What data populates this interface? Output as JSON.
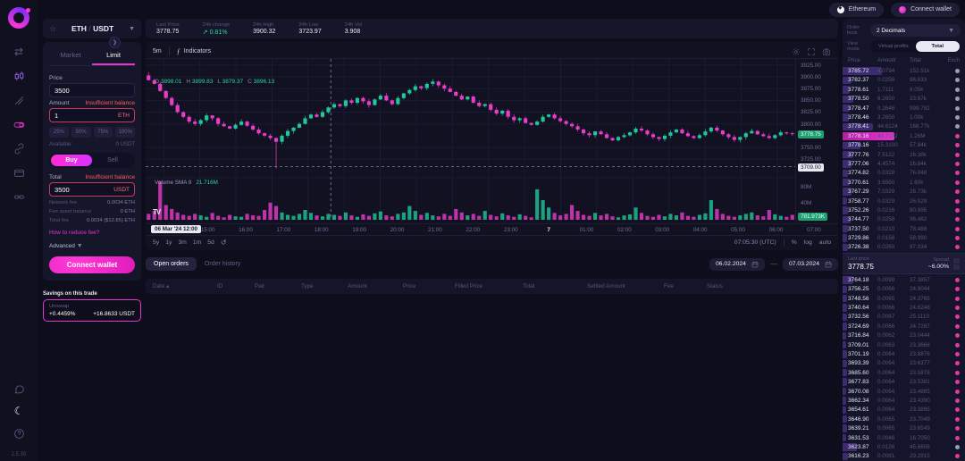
{
  "topbar": {
    "network": "Ethereum",
    "connect": "Connect wallet"
  },
  "sidebar": {
    "version": "2.5.30",
    "items": [
      "swap-icon",
      "candlestick-chart-icon",
      "draw-icon",
      "liquidity-pill-icon",
      "link-icon",
      "wallet-card-icon",
      "chain-icon"
    ],
    "bottom_items": [
      "chat-icon",
      "moon-icon",
      "help-icon"
    ]
  },
  "trade": {
    "pair_base": "ETH",
    "pair_sep": "/",
    "pair_quote": "USDT",
    "tab_market": "Market",
    "tab_limit": "Limit",
    "price_label": "Price",
    "price_value": "3500",
    "amount_label": "Amount",
    "amount_value": "1",
    "amount_unit": "ETH",
    "insufficient": "Insufficient balance",
    "percents": [
      "25%",
      "50%",
      "75%",
      "100%"
    ],
    "available_label": "Available:",
    "available_value": "0 USDT",
    "buy_label": "Buy",
    "sell_label": "Sell",
    "total_label": "Total",
    "total_value": "3500",
    "total_unit": "USDT",
    "fees": [
      {
        "label": "Network fee",
        "value": "0.0034 ETH"
      },
      {
        "label": "Fee asset balance",
        "value": "0 ETH"
      },
      {
        "label": "Total fee",
        "value": "0.0034 ($12.85) ETH"
      }
    ],
    "reduce_fee_link": "How to reduce fee?",
    "advanced_label": "Advanced",
    "connect_wallet": "Connect wallet",
    "savings_title": "Savings on this trade",
    "savings_venue": "Uniswap",
    "savings_percent": "+0.4459%",
    "savings_amount": "+16.8633 USDT"
  },
  "stats": {
    "items": [
      {
        "label": "Last Price",
        "value": "3778.75",
        "positive": false
      },
      {
        "label": "24h change",
        "value": "↗ 0.81%",
        "positive": true
      },
      {
        "label": "24h High",
        "value": "3900.32",
        "positive": false
      },
      {
        "label": "24h Low",
        "value": "3723.97",
        "positive": false
      },
      {
        "label": "24h Vol",
        "value": "3.908",
        "positive": false
      }
    ]
  },
  "chart": {
    "timeframe": "5m",
    "indicators_label": "Indicators",
    "fx_glyph": "ƒ",
    "ohlc": {
      "o_key": "O",
      "o": "3898.01",
      "h_key": "H",
      "h": "3899.83",
      "l_key": "L",
      "l": "3879.37",
      "c_key": "C",
      "c": "3896.13"
    },
    "volume_label": "Volume SMA 9",
    "volume_value": "21.716M",
    "tv_logo": "TV",
    "ranges": [
      "5y",
      "1y",
      "3m",
      "1m",
      "5d"
    ],
    "reset_glyph": "↺",
    "clock": "07:05:30 (UTC)",
    "percent_btn": "%",
    "log_btn": "log",
    "auto_btn": "auto",
    "crosshair_date": "06 Mar '24 12:00",
    "last_price_badge": "3778.75",
    "crosshair_price_badge": "3709.00",
    "volume_badge": "781.973K",
    "price_axis": [
      "3925.00",
      "3900.00",
      "3875.00",
      "3850.00",
      "3825.00",
      "3800.00",
      "3750.00",
      "3725.00"
    ],
    "volume_axis": [
      "80M",
      "40M"
    ],
    "x_axis": [
      "14:00",
      "15:00",
      "16:00",
      "17:00",
      "18:00",
      "19:00",
      "20:00",
      "21:00",
      "22:00",
      "23:00",
      "7",
      "01:00",
      "02:00",
      "03:00",
      "04:00",
      "05:00",
      "06:00",
      "07:00"
    ],
    "x_axis_day_index": 10
  },
  "chart_data": {
    "type": "candlestick",
    "pair": "ETH/USDT",
    "interval": "5m",
    "ylim": [
      3695,
      3938
    ],
    "vol_max": 80,
    "last_price": 3778.75,
    "crosshair": {
      "price": 3709,
      "x_frac": 0.285
    },
    "closes": [
      3893,
      3885,
      3870,
      3855,
      3840,
      3825,
      3815,
      3805,
      3800,
      3808,
      3818,
      3812,
      3800,
      3795,
      3790,
      3798,
      3805,
      3796,
      3788,
      3780,
      3775,
      3770,
      3762,
      3775,
      3785,
      3792,
      3800,
      3812,
      3820,
      3815,
      3825,
      3835,
      3842,
      3838,
      3850,
      3845,
      3855,
      3848,
      3840,
      3852,
      3860,
      3850,
      3842,
      3855,
      3865,
      3872,
      3880,
      3876,
      3885,
      3890,
      3882,
      3875,
      3868,
      3860,
      3852,
      3858,
      3845,
      3838,
      3842,
      3830,
      3822,
      3828,
      3815,
      3808,
      3812,
      3802,
      3798,
      3805,
      3815,
      3820,
      3812,
      3806,
      3800,
      3795,
      3788,
      3780,
      3776,
      3784,
      3778,
      3770,
      3765,
      3772,
      3776,
      3782,
      3790,
      3786,
      3778,
      3772,
      3768,
      3775,
      3782,
      3788,
      3780,
      3774,
      3770,
      3776,
      3784,
      3792,
      3786,
      3778,
      3772,
      3766,
      3772,
      3780,
      3785,
      3778,
      3774,
      3770,
      3776,
      3782,
      3780,
      3778.75
    ],
    "volumes": [
      12,
      18,
      78,
      30,
      22,
      15,
      10,
      8,
      12,
      9,
      6,
      14,
      8,
      5,
      10,
      7,
      6,
      12,
      9,
      8,
      20,
      35,
      28,
      15,
      10,
      8,
      12,
      20,
      14,
      9,
      7,
      12,
      10,
      8,
      15,
      9,
      6,
      11,
      8,
      13,
      17,
      9,
      7,
      12,
      15,
      28,
      18,
      10,
      14,
      9,
      7,
      12,
      8,
      22,
      15,
      9,
      12,
      8,
      18,
      10,
      7,
      13,
      9,
      6,
      11,
      8,
      5,
      62,
      40,
      25,
      14,
      9,
      12,
      30,
      18,
      10,
      8,
      14,
      9,
      12,
      7,
      5,
      9,
      11,
      25,
      14,
      8,
      6,
      10,
      7,
      12,
      9,
      15,
      8,
      6,
      10,
      13,
      40,
      22,
      12,
      8,
      6,
      9,
      12,
      15,
      9,
      7,
      20,
      11,
      8,
      6,
      10
    ]
  },
  "orders": {
    "tabs": [
      "Open orders",
      "Order history"
    ],
    "date_from": "06.02.2024",
    "date_to": "07.03.2024",
    "columns": [
      "Date",
      "ID",
      "Pair",
      "Type",
      "Amount",
      "Price",
      "Filled Price",
      "Total",
      "Settled Amount",
      "Fee",
      "Status"
    ],
    "sort_caret": "▴"
  },
  "orderbook": {
    "label": "Order book",
    "decimals_value": "2 Decimals",
    "view_mode_label": "View mode",
    "view_modes": [
      "Virtual profits",
      "Total"
    ],
    "active_view": "Total",
    "columns": [
      "Price",
      "Amount",
      "Total",
      "Exch"
    ],
    "asks": [
      {
        "p": "3785.72",
        "a": "4.0794",
        "t": "152.51k",
        "d": 44,
        "ex": "grey",
        "hl": false
      },
      {
        "p": "3782.37",
        "a": "0.0256",
        "t": "96.633",
        "d": 10,
        "ex": "grey",
        "hl": false
      },
      {
        "p": "3778.61",
        "a": "1.7111",
        "t": "8.05k",
        "d": 8,
        "ex": "grey",
        "hl": false
      },
      {
        "p": "3778.50",
        "a": "6.2650",
        "t": "23.67k",
        "d": 12,
        "ex": "grey",
        "hl": false
      },
      {
        "p": "3778.47",
        "a": "0.2646",
        "t": "999.782",
        "d": 8,
        "ex": "grey",
        "hl": false
      },
      {
        "p": "3778.46",
        "a": "3.2650",
        "t": "1.00k",
        "d": 7,
        "ex": "grey",
        "hl": false
      },
      {
        "p": "3778.41",
        "a": "44.6124",
        "t": "168.77k",
        "d": 34,
        "ex": "grey",
        "hl": false
      },
      {
        "p": "3778.16",
        "a": "43.7102",
        "t": "1.26M",
        "d": 58,
        "ex": "pink",
        "hl": true
      },
      {
        "p": "3778.16",
        "a": "15.3100",
        "t": "57.84k",
        "d": 20,
        "ex": "pink",
        "hl": false
      },
      {
        "p": "3777.76",
        "a": "7.5122",
        "t": "28.38k",
        "d": 12,
        "ex": "pink",
        "hl": false
      },
      {
        "p": "3777.06",
        "a": "4.4574",
        "t": "16.84k",
        "d": 10,
        "ex": "pink",
        "hl": false
      },
      {
        "p": "3774.82",
        "a": "0.0328",
        "t": "76.048",
        "d": 6,
        "ex": "pink",
        "hl": false
      },
      {
        "p": "3770.61",
        "a": "3.6560",
        "t": "1.60k",
        "d": 8,
        "ex": "pink",
        "hl": false
      },
      {
        "p": "3767.29",
        "a": "7.0329",
        "t": "26.73k",
        "d": 10,
        "ex": "pink",
        "hl": false
      },
      {
        "p": "3758.77",
        "a": "0.0329",
        "t": "26.029",
        "d": 5,
        "ex": "pink",
        "hl": false
      },
      {
        "p": "3752.26",
        "a": "0.0216",
        "t": "80.995",
        "d": 6,
        "ex": "pink",
        "hl": false
      },
      {
        "p": "3744.77",
        "a": "0.0258",
        "t": "96.462",
        "d": 9,
        "ex": "pink",
        "hl": false
      },
      {
        "p": "3737.50",
        "a": "0.0210",
        "t": "78.488",
        "d": 6,
        "ex": "pink",
        "hl": false
      },
      {
        "p": "3729.86",
        "a": "0.0158",
        "t": "58.990",
        "d": 5,
        "ex": "pink",
        "hl": false
      },
      {
        "p": "3726.38",
        "a": "0.0260",
        "t": "97.034",
        "d": 6,
        "ex": "pink",
        "hl": false
      }
    ],
    "mid": {
      "last_label": "Last price",
      "last": "3778.75",
      "spread_label": "Spread",
      "spread": "~6.00%"
    },
    "bids": [
      {
        "p": "3764.18",
        "a": "0.0099",
        "t": "37.3857",
        "d": 12,
        "ex": "pink",
        "hl": false
      },
      {
        "p": "3756.25",
        "a": "0.0066",
        "t": "24.9044",
        "d": 5,
        "ex": "pink",
        "hl": false
      },
      {
        "p": "3748.56",
        "a": "0.0065",
        "t": "24.3765",
        "d": 5,
        "ex": "pink",
        "hl": false
      },
      {
        "p": "3740.64",
        "a": "0.0066",
        "t": "24.6248",
        "d": 5,
        "ex": "pink",
        "hl": false
      },
      {
        "p": "3732.56",
        "a": "0.0067",
        "t": "25.1110",
        "d": 5,
        "ex": "pink",
        "hl": false
      },
      {
        "p": "3724.69",
        "a": "0.0066",
        "t": "24.7287",
        "d": 5,
        "ex": "pink",
        "hl": false
      },
      {
        "p": "3716.84",
        "a": "0.0062",
        "t": "23.0444",
        "d": 4,
        "ex": "pink",
        "hl": false
      },
      {
        "p": "3709.01",
        "a": "0.0063",
        "t": "23.3668",
        "d": 4,
        "ex": "pink",
        "hl": false
      },
      {
        "p": "3701.19",
        "a": "0.0064",
        "t": "23.6876",
        "d": 5,
        "ex": "pink",
        "hl": false
      },
      {
        "p": "3693.39",
        "a": "0.0064",
        "t": "23.6377",
        "d": 5,
        "ex": "pink",
        "hl": false
      },
      {
        "p": "3685.60",
        "a": "0.0064",
        "t": "23.5878",
        "d": 5,
        "ex": "pink",
        "hl": false
      },
      {
        "p": "3677.83",
        "a": "0.0064",
        "t": "23.5381",
        "d": 5,
        "ex": "pink",
        "hl": false
      },
      {
        "p": "3670.08",
        "a": "0.0064",
        "t": "23.4885",
        "d": 4,
        "ex": "pink",
        "hl": false
      },
      {
        "p": "3662.34",
        "a": "0.0064",
        "t": "23.4390",
        "d": 4,
        "ex": "pink",
        "hl": false
      },
      {
        "p": "3654.61",
        "a": "0.0064",
        "t": "23.3895",
        "d": 4,
        "ex": "pink",
        "hl": false
      },
      {
        "p": "3646.90",
        "a": "0.0065",
        "t": "23.7049",
        "d": 5,
        "ex": "pink",
        "hl": false
      },
      {
        "p": "3639.21",
        "a": "0.0065",
        "t": "23.6549",
        "d": 5,
        "ex": "pink",
        "hl": false
      },
      {
        "p": "3631.53",
        "a": "0.0046",
        "t": "16.7050",
        "d": 4,
        "ex": "pink",
        "hl": false
      },
      {
        "p": "3623.87",
        "a": "0.0126",
        "t": "45.6608",
        "d": 16,
        "ex": "grey",
        "hl": false
      },
      {
        "p": "3616.23",
        "a": "0.0081",
        "t": "29.2915",
        "d": 6,
        "ex": "pink",
        "hl": false
      }
    ]
  },
  "colors": {
    "accent_pink": "#e833cf",
    "candle_up": "#1fc79a",
    "candle_down": "#ea3cc9",
    "positive_green": "#2bd899",
    "error_red": "#ff5c5c",
    "depth_purple": "#3c2b6e"
  }
}
